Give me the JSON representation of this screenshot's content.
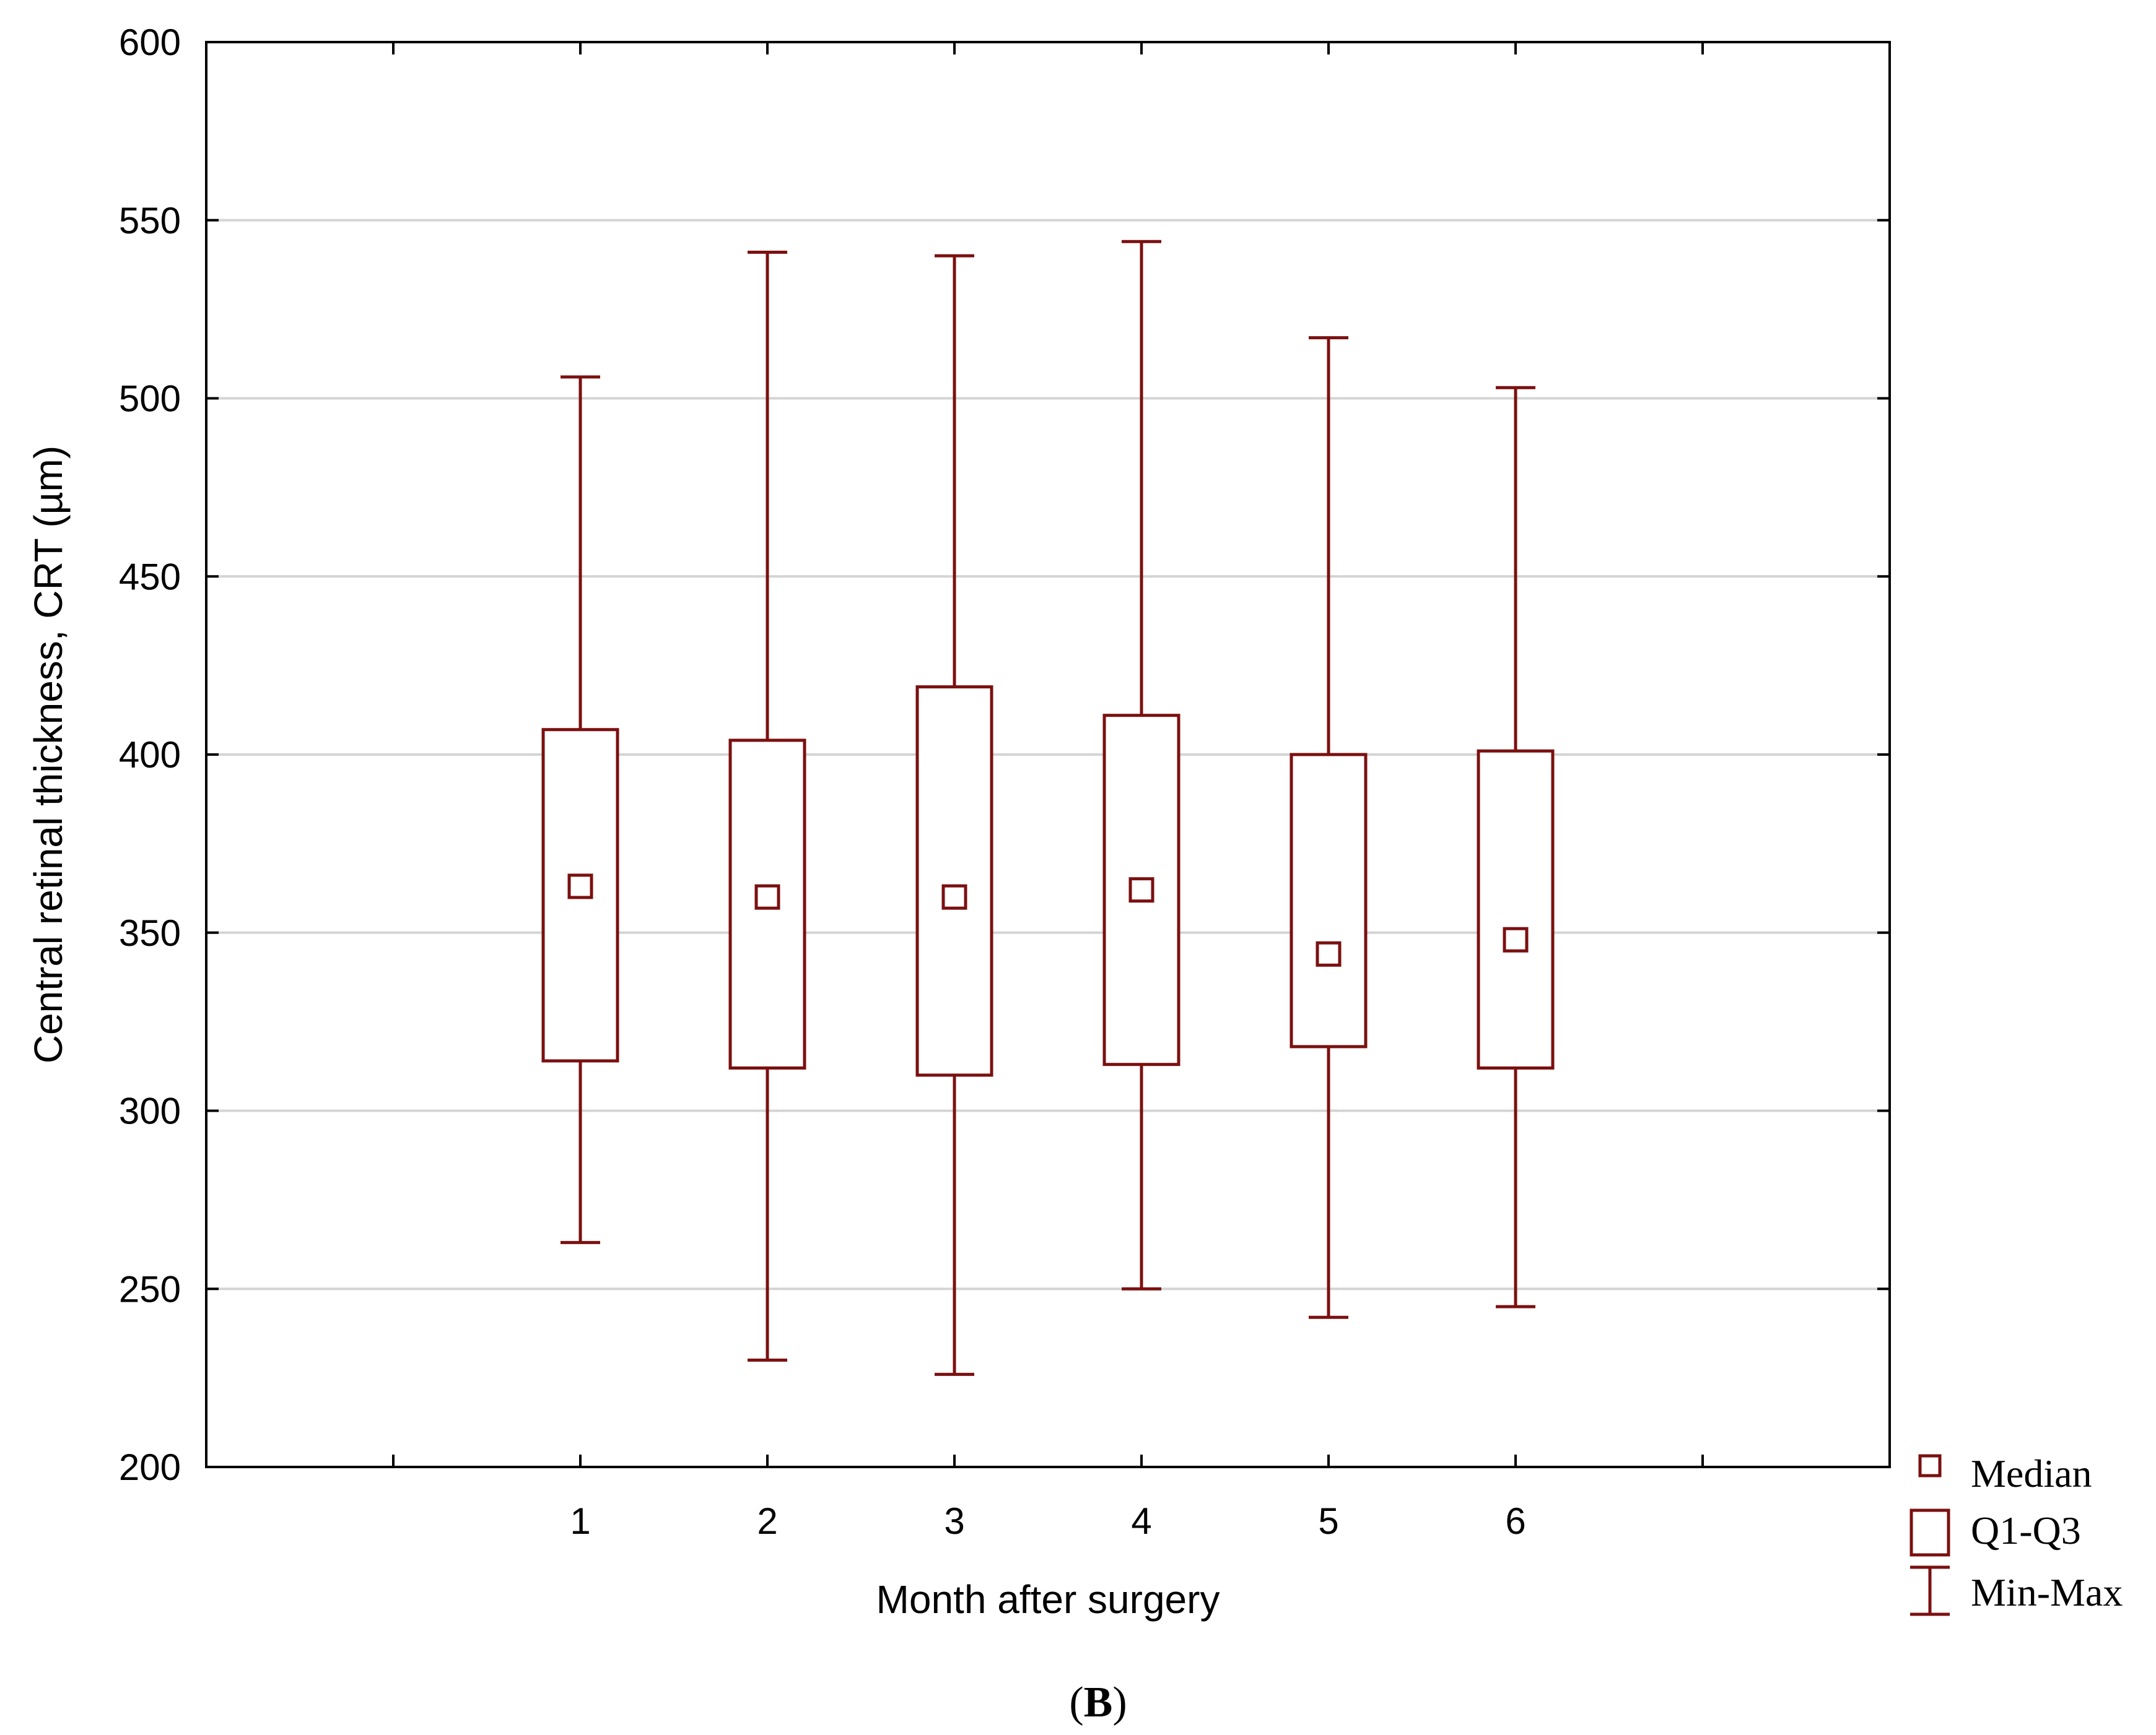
{
  "chart_data": {
    "type": "boxplot",
    "title": "",
    "xlabel": "Month after surgery",
    "ylabel": "Central retinal thickness, CRT (µm)",
    "caption": {
      "open": "(",
      "letter": "B",
      "close": ")"
    },
    "ylim": [
      200,
      600
    ],
    "yticks": [
      200,
      250,
      300,
      350,
      400,
      450,
      500,
      550,
      600
    ],
    "ytick_labels": [
      "200",
      "250",
      "300",
      "350",
      "400",
      "450",
      "500",
      "550",
      "600"
    ],
    "x_range": [
      -1,
      8
    ],
    "x_ticks": [
      0,
      1,
      2,
      3,
      4,
      5,
      6,
      7
    ],
    "categories": [
      "1",
      "2",
      "3",
      "4",
      "5",
      "6"
    ],
    "grid": true,
    "color": "#7b1010",
    "boxes": [
      {
        "category": "1",
        "min": 263,
        "q1": 314,
        "median": 363,
        "q3": 407,
        "max": 506
      },
      {
        "category": "2",
        "min": 230,
        "q1": 312,
        "median": 360,
        "q3": 404,
        "max": 541
      },
      {
        "category": "3",
        "min": 226,
        "q1": 310,
        "median": 360,
        "q3": 419,
        "max": 540
      },
      {
        "category": "4",
        "min": 250,
        "q1": 313,
        "median": 362,
        "q3": 411,
        "max": 544
      },
      {
        "category": "5",
        "min": 242,
        "q1": 318,
        "median": 344,
        "q3": 400,
        "max": 517
      },
      {
        "category": "6",
        "min": 245,
        "q1": 312,
        "median": 348,
        "q3": 401,
        "max": 503
      }
    ],
    "legend": {
      "position": "bottom-right outside",
      "entries": [
        {
          "symbol": "median-square",
          "label": "Median"
        },
        {
          "symbol": "box",
          "label": "Q1-Q3"
        },
        {
          "symbol": "whisker",
          "label": "Min-Max"
        }
      ]
    }
  }
}
